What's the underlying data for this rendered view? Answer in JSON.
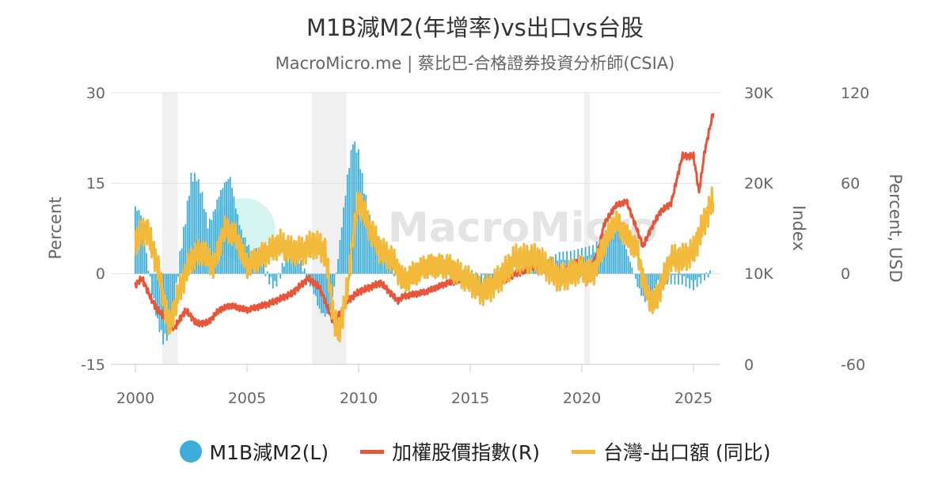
{
  "chart_data": {
    "type": "bar+line",
    "title": "M1B減M2(年增率)vs出口vs台股",
    "subtitle": "MacroMicro.me | 蔡比巴-合格證券投資分析師(CSIA)",
    "watermark": "MacroMicro",
    "x_ticks": [
      "2000",
      "2005",
      "2010",
      "2015",
      "2020",
      "2025"
    ],
    "axes": {
      "left": {
        "label": "Percent",
        "range": [
          -15,
          30
        ],
        "ticks": [
          "30",
          "15",
          "0",
          "-15"
        ]
      },
      "right": {
        "label": "Index",
        "range": [
          0,
          30000
        ],
        "ticks": [
          "30K",
          "20K",
          "10K",
          "0"
        ]
      },
      "right2": {
        "label": "Percent, USD",
        "range": [
          -60,
          120
        ],
        "ticks": [
          "120",
          "60",
          "0",
          "-60"
        ]
      }
    },
    "grid": true,
    "legend_position": "bottom",
    "shaded_periods": [
      [
        2001.2,
        2001.9
      ],
      [
        2007.9,
        2009.45
      ],
      [
        2020.1,
        2020.35
      ]
    ],
    "series": [
      {
        "name": "M1B減M2(L)",
        "type": "bar",
        "axis": "left",
        "color": "#3daedb",
        "x": [
          2000,
          2000.25,
          2000.5,
          2000.75,
          2001,
          2001.25,
          2001.5,
          2001.75,
          2002,
          2002.25,
          2002.5,
          2002.75,
          2003,
          2003.25,
          2003.5,
          2003.75,
          2004,
          2004.25,
          2004.5,
          2004.75,
          2005,
          2005.25,
          2005.5,
          2005.75,
          2006,
          2006.25,
          2006.5,
          2006.75,
          2007,
          2007.25,
          2007.5,
          2007.75,
          2008,
          2008.25,
          2008.5,
          2008.75,
          2009,
          2009.25,
          2009.5,
          2009.75,
          2010,
          2010.25,
          2010.5,
          2010.75,
          2011,
          2011.25,
          2011.5,
          2011.75,
          2012,
          2012.5,
          2013,
          2013.5,
          2014,
          2014.5,
          2015,
          2015.5,
          2016,
          2016.5,
          2017,
          2017.5,
          2018,
          2018.5,
          2019,
          2019.5,
          2020,
          2020.5,
          2021,
          2021.25,
          2021.5,
          2021.75,
          2022,
          2022.25,
          2022.5,
          2022.75,
          2023,
          2023.25,
          2023.5,
          2024,
          2024.5,
          2025,
          2025.5,
          2025.8
        ],
        "values": [
          11,
          10,
          3,
          -3,
          -8,
          -11,
          -10,
          -5,
          3,
          9,
          16,
          16,
          13,
          8,
          10,
          13,
          15,
          16,
          11,
          7,
          5,
          3,
          4,
          1,
          -1,
          -2,
          0,
          3,
          4,
          3,
          1,
          -1,
          -3,
          -6,
          -7,
          -6,
          0,
          8,
          16,
          22,
          20,
          14,
          9,
          6,
          4,
          3,
          1,
          -1,
          -1,
          1,
          2,
          2,
          2,
          -1,
          0,
          -1,
          -1,
          0,
          0,
          1,
          1.5,
          2,
          3,
          3,
          3.5,
          4,
          6,
          8,
          8,
          7,
          4,
          1,
          -2,
          -4,
          -5,
          -3,
          -1,
          -1,
          -1,
          -2,
          -0.5,
          0.2
        ]
      },
      {
        "name": "加權股價指數(R)",
        "type": "line",
        "axis": "right",
        "color": "#e8553a",
        "x": [
          2000,
          2000.3,
          2000.75,
          2001,
          2001.4,
          2001.75,
          2002.25,
          2002.75,
          2003.25,
          2003.75,
          2004.25,
          2005,
          2006,
          2007,
          2007.75,
          2008.25,
          2008.9,
          2009.5,
          2010,
          2011,
          2011.75,
          2012,
          2013,
          2014,
          2015,
          2015.75,
          2016,
          2017,
          2018,
          2018.8,
          2019.5,
          2020,
          2020.2,
          2020.75,
          2021,
          2021.5,
          2022,
          2022.75,
          2023,
          2023.5,
          2024,
          2024.5,
          2025,
          2025.25,
          2025.5,
          2025.9
        ],
        "values": [
          8800,
          9500,
          7000,
          6000,
          5000,
          4000,
          6000,
          4500,
          4600,
          6000,
          6500,
          6000,
          6700,
          7800,
          9500,
          8500,
          4500,
          7000,
          8000,
          9000,
          7000,
          7500,
          8000,
          9000,
          9500,
          8000,
          8300,
          10000,
          10800,
          9800,
          10800,
          11800,
          9000,
          12800,
          15500,
          17500,
          18000,
          13000,
          14500,
          16800,
          17800,
          23000,
          23000,
          19000,
          23500,
          28000
        ]
      },
      {
        "name": "台灣-出口額 (同比)",
        "type": "line",
        "axis": "right2",
        "color": "#f2b93b",
        "x": [
          2000,
          2000.5,
          2001,
          2001.5,
          2002,
          2002.5,
          2003,
          2003.5,
          2004,
          2004.5,
          2005,
          2005.5,
          2006,
          2006.5,
          2007,
          2007.5,
          2008,
          2008.5,
          2008.9,
          2009.1,
          2009.5,
          2009.75,
          2010,
          2010.5,
          2011,
          2011.5,
          2012,
          2012.5,
          2013,
          2014,
          2015,
          2015.5,
          2016,
          2016.5,
          2017,
          2018,
          2019,
          2019.5,
          2020,
          2020.5,
          2021,
          2021.5,
          2022,
          2022.5,
          2022.75,
          2023,
          2023.25,
          2023.75,
          2024,
          2024.5,
          2025,
          2025.5,
          2025.9
        ],
        "values": [
          22,
          30,
          5,
          -35,
          -10,
          10,
          15,
          5,
          30,
          25,
          5,
          10,
          15,
          20,
          15,
          15,
          20,
          15,
          -30,
          -40,
          -10,
          25,
          50,
          30,
          15,
          10,
          -5,
          0,
          5,
          5,
          -5,
          -12,
          -8,
          0,
          10,
          10,
          -3,
          0,
          3,
          0,
          20,
          35,
          25,
          15,
          -5,
          -15,
          -20,
          0,
          10,
          10,
          15,
          35,
          50
        ]
      }
    ]
  }
}
